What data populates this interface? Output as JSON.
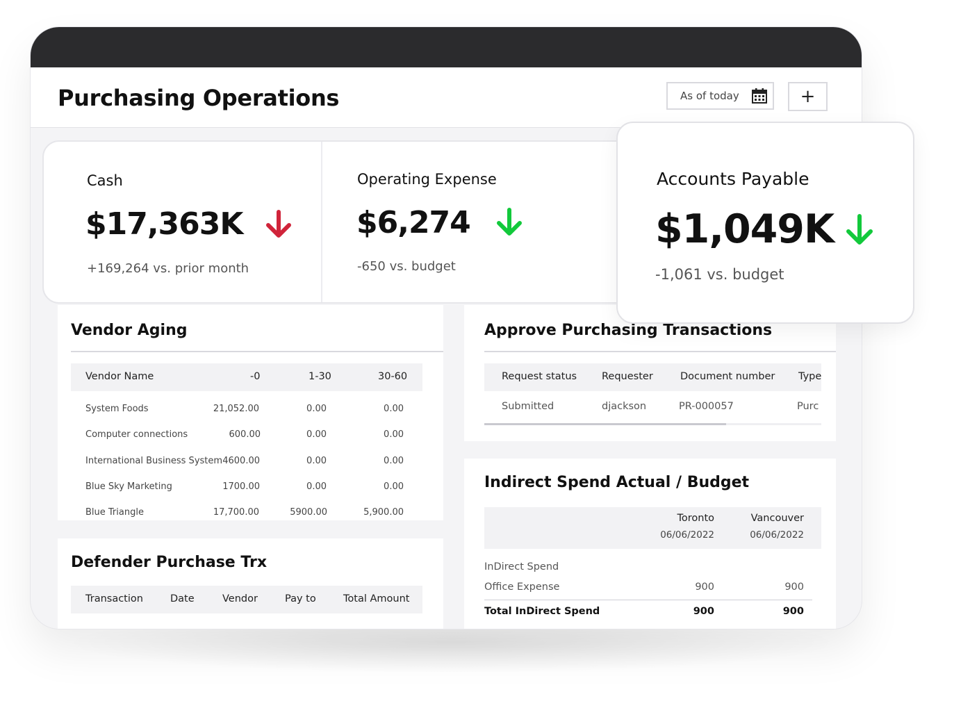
{
  "header": {
    "title": "Purchasing Operations",
    "date_filter": "As of today",
    "add_label": "+"
  },
  "kpis": {
    "cash": {
      "label": "Cash",
      "value": "$17,363K",
      "sub": "+169,264 vs. prior month",
      "trend": "down",
      "trend_color": "#d0243a"
    },
    "opex": {
      "label": "Operating Expense",
      "value": "$6,274",
      "sub": "-650 vs. budget",
      "trend": "down",
      "trend_color": "#12c93b"
    },
    "ap": {
      "label": "Accounts Payable",
      "value": "$1,049K",
      "sub": "-1,061 vs. budget",
      "trend": "down",
      "trend_color": "#12c93b"
    }
  },
  "vendor_aging": {
    "title": "Vendor Aging",
    "columns": [
      "Vendor Name",
      "-0",
      "1-30",
      "30-60"
    ],
    "rows": [
      [
        "System Foods",
        "21,052.00",
        "0.00",
        "0.00"
      ],
      [
        "Computer connections",
        "600.00",
        "0.00",
        "0.00"
      ],
      [
        "International Business System",
        "4600.00",
        "0.00",
        "0.00"
      ],
      [
        "Blue Sky Marketing",
        "1700.00",
        "0.00",
        "0.00"
      ],
      [
        "Blue Triangle",
        "17,700.00",
        "5900.00",
        "5,900.00"
      ]
    ]
  },
  "approve": {
    "title": "Approve Purchasing Transactions",
    "columns": [
      "Request status",
      "Requester",
      "Document number",
      "Type"
    ],
    "rows": [
      [
        "Submitted",
        "djackson",
        "PR-000057",
        "Purc"
      ]
    ]
  },
  "defender": {
    "title": "Defender Purchase Trx",
    "columns": [
      "Transaction",
      "Date",
      "Vendor",
      "Pay to",
      "Total Amount"
    ]
  },
  "indirect": {
    "title": "Indirect Spend Actual / Budget",
    "col1": {
      "city": "Toronto",
      "date": "06/06/2022"
    },
    "col2": {
      "city": "Vancouver",
      "date": "06/06/2022"
    },
    "group_label": "InDirect Spend",
    "row_label": "Office Expense",
    "row_values": [
      "900",
      "900"
    ],
    "total_label": "Total InDirect Spend",
    "total_values": [
      "900",
      "900"
    ]
  },
  "icons": {
    "calendar": "calendar-icon",
    "arrow": "arrow-down-icon"
  }
}
